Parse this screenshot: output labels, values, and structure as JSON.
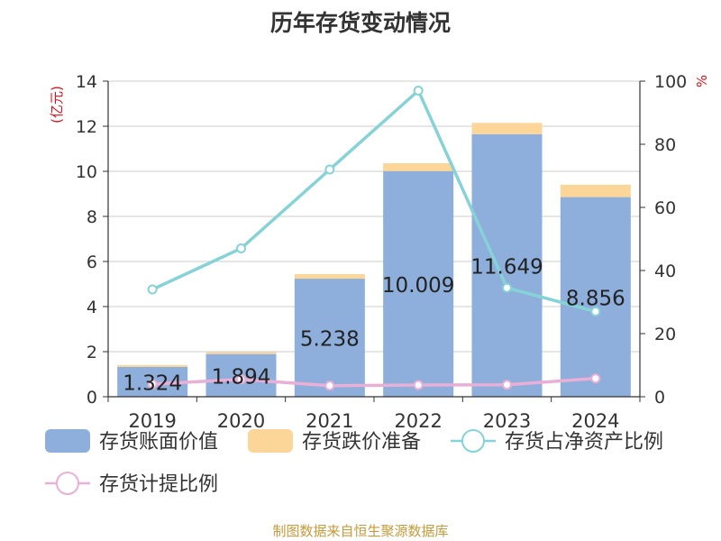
{
  "chart_data": {
    "type": "bar",
    "title": "历年存货变动情况",
    "categories": [
      "2019",
      "2020",
      "2021",
      "2022",
      "2023",
      "2024"
    ],
    "left_axis": {
      "label": "(亿元)",
      "range": [
        0,
        14
      ],
      "ticks": [
        0,
        2,
        4,
        6,
        8,
        10,
        12,
        14
      ]
    },
    "right_axis": {
      "label": "%",
      "range": [
        0,
        100
      ],
      "ticks": [
        0,
        20,
        40,
        60,
        80,
        100
      ]
    },
    "grid": true,
    "legend_position": "bottom",
    "series": [
      {
        "name": "存货账面价值",
        "type": "bar",
        "stack": "inventory",
        "axis": "left",
        "color": "#8eaedb",
        "values": [
          1.324,
          1.894,
          5.238,
          10.009,
          11.649,
          8.856
        ],
        "data_labels": [
          "1.324",
          "1.894",
          "5.238",
          "10.009",
          "11.649",
          "8.856"
        ]
      },
      {
        "name": "存货跌价准备",
        "type": "bar",
        "stack": "inventory",
        "axis": "left",
        "color": "#fcd598",
        "values": [
          0.08,
          0.08,
          0.2,
          0.35,
          0.5,
          0.55
        ]
      },
      {
        "name": "存货占净资产比例",
        "type": "line",
        "axis": "right",
        "color": "#86d3d7",
        "values": [
          34,
          47,
          72,
          97,
          34.5,
          27
        ]
      },
      {
        "name": "存货计提比例",
        "type": "line",
        "axis": "right",
        "color": "#e9afd6",
        "values": [
          4,
          5.5,
          3.5,
          3.7,
          3.8,
          5.8
        ]
      }
    ]
  },
  "source": "制图数据来自恒生聚源数据库"
}
